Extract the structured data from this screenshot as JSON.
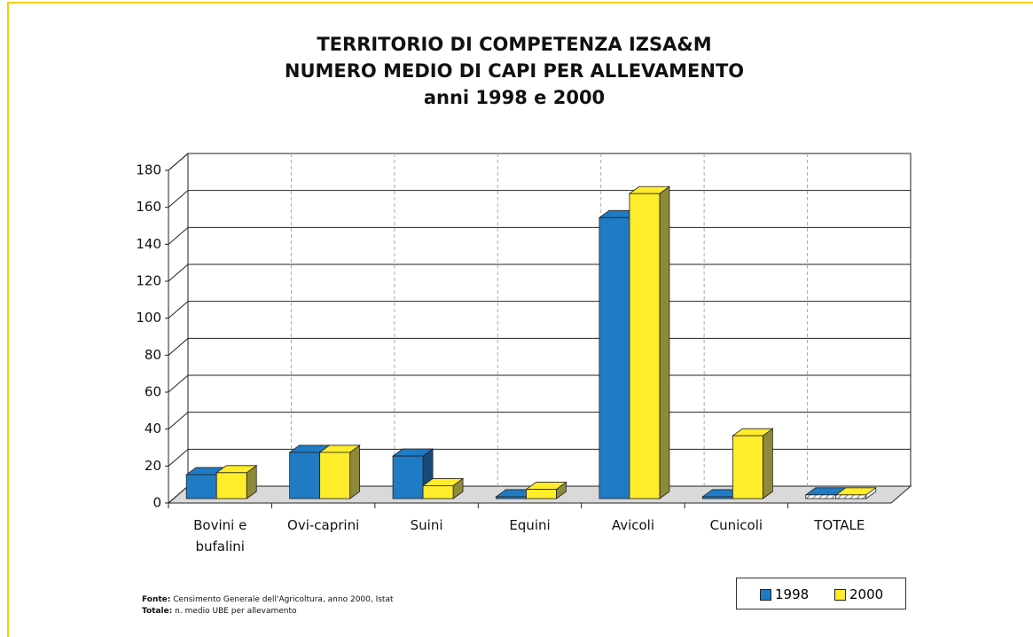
{
  "chart_data": {
    "type": "bar3d",
    "title": [
      "TERRITORIO DI COMPETENZA IZSA&M",
      "NUMERO MEDIO DI CAPI PER ALLEVAMENTO",
      "anni 1998 e 2000"
    ],
    "categories": [
      "Bovini e bufalini",
      "Ovi-caprini",
      "Suini",
      "Equini",
      "Avicoli",
      "Cunicoli",
      "TOTALE"
    ],
    "series": [
      {
        "name": "1998",
        "color": "#1f7bc4",
        "side_color": "#1a4a78",
        "values": [
          13,
          25,
          23,
          1,
          152,
          1,
          2
        ]
      },
      {
        "name": "2000",
        "color": "#ffec2a",
        "side_color": "#8f8a3a",
        "values": [
          14,
          25,
          7,
          5,
          165,
          34,
          2
        ]
      }
    ],
    "hatched_category_index": 6,
    "ylim": [
      0,
      180
    ],
    "yticks": [
      0,
      20,
      40,
      60,
      80,
      100,
      120,
      140,
      160,
      180
    ],
    "grid": true
  },
  "notes": [
    {
      "label": "Fonte:",
      "text": "Censimento Generale dell'Agricoltura, anno 2000, Istat"
    },
    {
      "label": "Totale:",
      "text": "n. medio UBE per allevamento"
    }
  ]
}
